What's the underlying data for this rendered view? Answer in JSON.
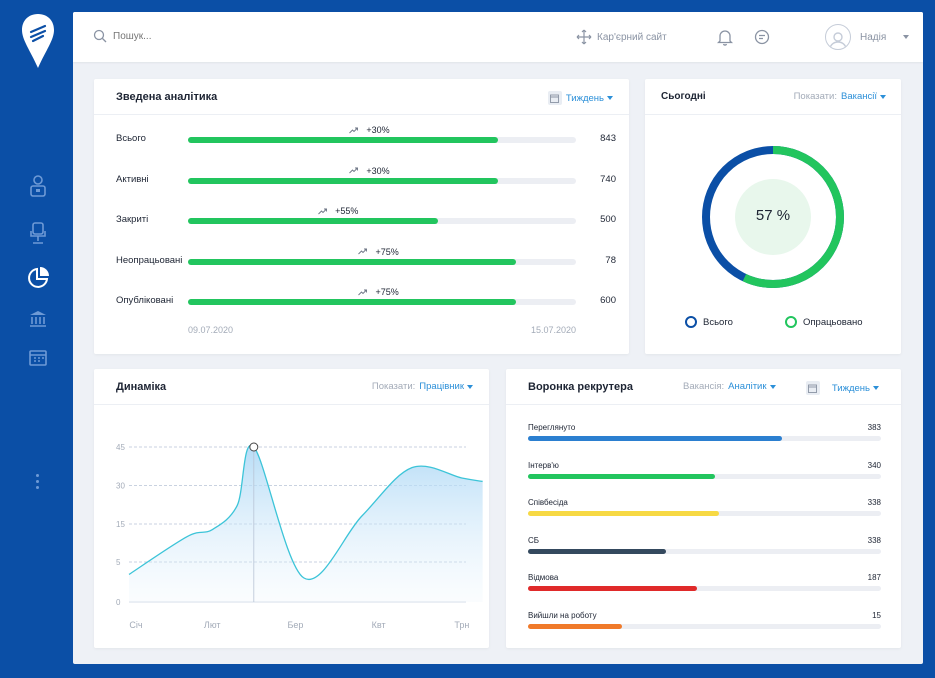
{
  "search": {
    "placeholder": "Пошук..."
  },
  "topbar": {
    "career_label": "Кар'єрний сайт",
    "user_name": "Надія"
  },
  "summary": {
    "title": "Зведена аналітика",
    "period": "Тиждень",
    "rows": [
      {
        "label": "Всього",
        "value": "843",
        "trend": "+30%",
        "fill": 0.8
      },
      {
        "label": "Активні",
        "value": "740",
        "trend": "+30%",
        "fill": 0.8
      },
      {
        "label": "Закриті",
        "value": "500",
        "trend": "+55%",
        "fill": 0.645
      },
      {
        "label": "Неопрацьовані",
        "value": "78",
        "trend": "+75%",
        "fill": 0.845
      },
      {
        "label": "Опубліковані",
        "value": "600",
        "trend": "+75%",
        "fill": 0.845
      }
    ],
    "date_start": "09.07.2020",
    "date_end": "15.07.2020"
  },
  "today": {
    "title": "Сьогодні",
    "show_label": "Показати:",
    "show_value": "Вакансії",
    "percent_label": "57 %",
    "percent": 57,
    "legend_total": "Всього",
    "legend_processed": "Опрацьовано",
    "colors": {
      "total": "#0b4fa6",
      "processed": "#22c55e"
    }
  },
  "dynamics": {
    "title": "Динаміка",
    "show_label": "Показати:",
    "show_value": "Працівник"
  },
  "funnel": {
    "title": "Воронка рекрутера",
    "vacancy_label": "Вакансія:",
    "vacancy_value": "Аналітик",
    "period": "Тиждень",
    "items": [
      {
        "label": "Переглянуто",
        "value": "383",
        "fill": 0.72,
        "color": "#2b7fd0"
      },
      {
        "label": "Інтерв'ю",
        "value": "340",
        "fill": 0.53,
        "color": "#22c55e"
      },
      {
        "label": "Співбесіда",
        "value": "338",
        "fill": 0.54,
        "color": "#f7d944"
      },
      {
        "label": "СБ",
        "value": "338",
        "fill": 0.39,
        "color": "#34495e"
      },
      {
        "label": "Відмова",
        "value": "187",
        "fill": 0.48,
        "color": "#e02a2a"
      },
      {
        "label": "Вийшли на роботу",
        "value": "15",
        "fill": 0.265,
        "color": "#f07a2a"
      }
    ]
  },
  "chart_data": {
    "type": "area",
    "title": "",
    "xlabel": "",
    "ylabel": "",
    "categories": [
      "Січ",
      "Лют",
      "Бер",
      "Квт",
      "Трн"
    ],
    "y_ticks": [
      "45",
      "30",
      "15",
      "5",
      "0"
    ],
    "ylim": [
      0,
      45
    ],
    "x": [
      0,
      0.7,
      1.0,
      1.3,
      1.5,
      2.1,
      2.8,
      3.4,
      4.0,
      4.25
    ],
    "y": [
      8,
      19,
      21,
      28,
      45,
      7,
      25,
      39,
      36,
      35
    ],
    "highlight_point": {
      "x": 1.5,
      "y": 45
    },
    "grid": true,
    "color": "#3cc4d8"
  }
}
